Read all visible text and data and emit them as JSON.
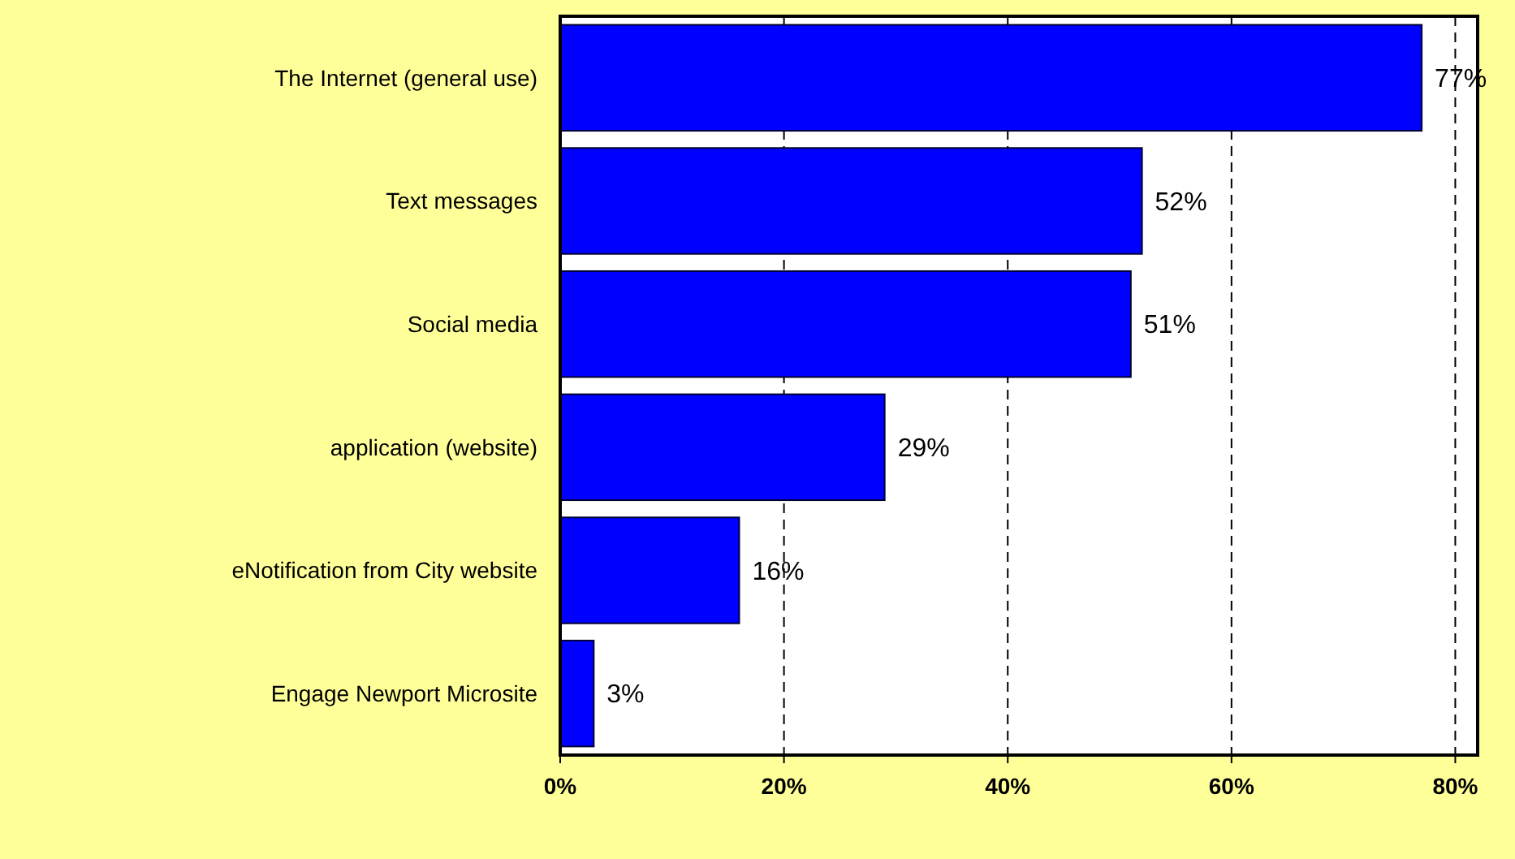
{
  "chart_data": {
    "type": "bar",
    "orientation": "horizontal",
    "categories": [
      "The Internet (general use)",
      "Text messages",
      "Social media",
      "application (website)",
      "eNotification from City website",
      "Engage Newport Microsite"
    ],
    "values": [
      77,
      52,
      51,
      29,
      16,
      3
    ],
    "value_labels": [
      "77%",
      "52%",
      "51%",
      "29%",
      "16%",
      "3%"
    ],
    "color": "#0000ff",
    "xlim": [
      0,
      82
    ],
    "xticks": [
      {
        "value": 0,
        "label": "0%"
      },
      {
        "value": 20,
        "label": "20%"
      },
      {
        "value": 40,
        "label": "40%"
      },
      {
        "value": 60,
        "label": "60%"
      },
      {
        "value": 80,
        "label": "80%"
      }
    ],
    "grid": "x"
  }
}
